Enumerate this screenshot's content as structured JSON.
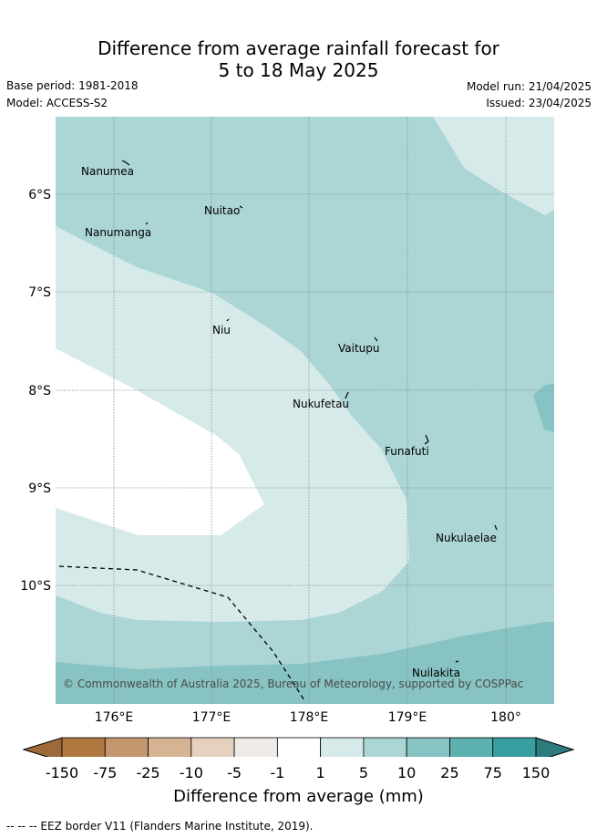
{
  "title": {
    "line1": "Difference from average rainfall forecast for",
    "line2": "5 to 18 May 2025"
  },
  "meta": {
    "base_period": "Base period: 1981-2018",
    "model": "Model: ACCESS-S2",
    "model_run": "Model run: 21/04/2025",
    "issued": "Issued: 23/04/2025"
  },
  "map": {
    "latitude_labels": [
      "6°S",
      "7°S",
      "8°S",
      "9°S",
      "10°S"
    ],
    "longitude_labels": [
      "176°E",
      "177°E",
      "178°E",
      "179°E",
      "180°"
    ],
    "places": [
      "Nanumea",
      "Nuitao",
      "Nanumanga",
      "Niu",
      "Vaitupu",
      "Nukufetau",
      "Funafuti",
      "Nukulaelae",
      "Nuilakita"
    ],
    "copyright": "© Commonwealth of Australia 2025, Bureau of Meteorology, supported by COSPPac",
    "region_colors": {
      "band_1_5": "#d6eae9",
      "band_5_10": "#acd5d5",
      "band_10_25": "#86c3c2",
      "band_neutral": "#ffffff"
    }
  },
  "colorbar": {
    "ticks": [
      "-150",
      "-75",
      "-25",
      "-10",
      "-5",
      "-1",
      "1",
      "5",
      "10",
      "25",
      "75",
      "150"
    ],
    "colors": [
      "#9e6a3a",
      "#b07840",
      "#c4966b",
      "#d5b393",
      "#e6d1bf",
      "#efebe8",
      "#ffffff",
      "#d6eae9",
      "#acd5d5",
      "#86c3c2",
      "#5cb0b0",
      "#379f9f",
      "#2d7c7d"
    ],
    "label": "Difference from average (mm)"
  },
  "footnote": "-- -- -- EEZ border V11 (Flanders Marine Institute, 2019)."
}
